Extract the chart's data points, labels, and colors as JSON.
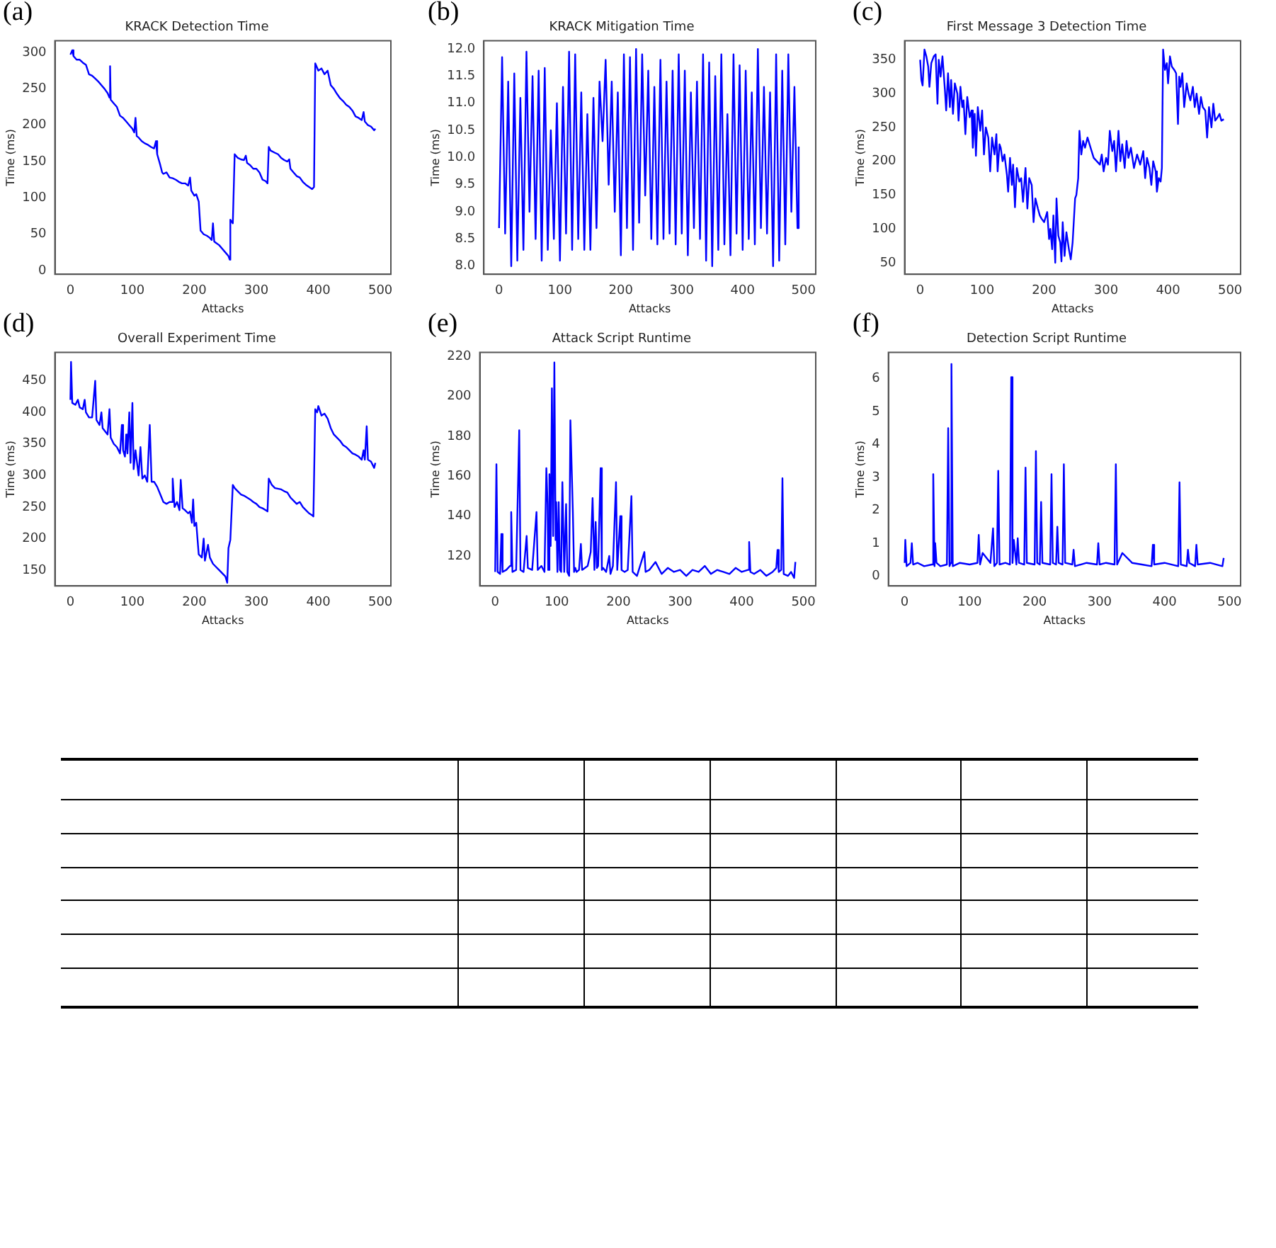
{
  "chart_data": [
    {
      "type": "line",
      "title": "KRACK Detection Time",
      "xlabel": "Attacks",
      "ylabel": "Time (ms)",
      "annotations": [
        "(a)"
      ],
      "xlim": [
        -25,
        517
      ],
      "xticks": [
        0,
        100,
        200,
        300,
        400,
        500
      ],
      "ylim": [
        -5,
        316
      ],
      "yticks": [
        0,
        50,
        100,
        150,
        200,
        250,
        300
      ],
      "grid": false,
      "legend": false,
      "marker": "none",
      "line_style": "solid",
      "series": [
        {
          "color": "#0000ff",
          "x": [
            0,
            3,
            5,
            10,
            15,
            20,
            25,
            30,
            35,
            40,
            45,
            50,
            55,
            60,
            63,
            64,
            65,
            70,
            75,
            80,
            85,
            90,
            95,
            100,
            103,
            105,
            107,
            110,
            115,
            120,
            125,
            130,
            135,
            138,
            140,
            145,
            148,
            150,
            155,
            160,
            165,
            170,
            175,
            180,
            185,
            190,
            193,
            195,
            200,
            203,
            207,
            210,
            215,
            220,
            225,
            228,
            230,
            232,
            235,
            240,
            245,
            250,
            255,
            257,
            258,
            262,
            265,
            270,
            275,
            280,
            283,
            285,
            290,
            295,
            300,
            305,
            310,
            315,
            318,
            320,
            323,
            330,
            335,
            340,
            345,
            350,
            353,
            355,
            360,
            365,
            370,
            375,
            380,
            385,
            390,
            393,
            395,
            400,
            405,
            410,
            415,
            420,
            425,
            430,
            435,
            440,
            445,
            450,
            455,
            460,
            465,
            470,
            473,
            475,
            480,
            485,
            490,
            492
          ],
          "values": [
            297,
            303,
            295,
            290,
            290,
            286,
            283,
            270,
            268,
            264,
            260,
            255,
            250,
            244,
            238,
            281,
            235,
            230,
            225,
            213,
            210,
            205,
            200,
            195,
            190,
            210,
            185,
            183,
            178,
            175,
            173,
            170,
            168,
            178,
            160,
            145,
            135,
            133,
            135,
            128,
            127,
            125,
            122,
            120,
            120,
            117,
            128,
            110,
            103,
            105,
            95,
            55,
            50,
            48,
            45,
            42,
            65,
            40,
            38,
            35,
            30,
            25,
            20,
            15,
            70,
            65,
            160,
            155,
            153,
            152,
            158,
            148,
            145,
            140,
            140,
            135,
            125,
            123,
            120,
            170,
            165,
            162,
            160,
            155,
            152,
            150,
            153,
            140,
            135,
            130,
            128,
            122,
            118,
            115,
            112,
            115,
            285,
            275,
            278,
            270,
            275,
            255,
            250,
            243,
            237,
            233,
            228,
            225,
            220,
            212,
            210,
            207,
            218,
            205,
            200,
            198,
            193,
            195
          ]
        }
      ]
    },
    {
      "type": "line",
      "title": "KRACK Mitigation Time",
      "xlabel": "Attacks",
      "ylabel": "Time (ms)",
      "annotations": [
        "(b)"
      ],
      "xlim": [
        -25,
        520
      ],
      "xticks": [
        0,
        100,
        200,
        300,
        400,
        500
      ],
      "ylim": [
        7.85,
        12.15
      ],
      "yticks": [
        {
          "value": 8,
          "label": "8.0"
        },
        8.5,
        {
          "value": 9,
          "label": "9.0"
        },
        9.5,
        {
          "value": 10,
          "label": "10.0"
        },
        10.5,
        {
          "value": 11,
          "label": "11.0"
        },
        11.5,
        {
          "value": 12,
          "label": "12.0"
        }
      ],
      "grid": false,
      "legend": false,
      "marker": "none",
      "line_style": "solid",
      "series": [
        {
          "color": "#0000ff",
          "x": [
            0,
            5,
            10,
            15,
            20,
            25,
            30,
            35,
            40,
            45,
            50,
            55,
            60,
            65,
            70,
            75,
            80,
            85,
            90,
            95,
            100,
            105,
            110,
            115,
            120,
            125,
            130,
            135,
            140,
            145,
            150,
            155,
            160,
            165,
            170,
            175,
            180,
            185,
            190,
            195,
            200,
            205,
            210,
            215,
            220,
            225,
            230,
            235,
            240,
            245,
            250,
            255,
            260,
            265,
            270,
            275,
            280,
            285,
            290,
            295,
            300,
            305,
            310,
            315,
            320,
            325,
            330,
            335,
            340,
            345,
            350,
            355,
            360,
            365,
            370,
            375,
            380,
            385,
            390,
            395,
            400,
            405,
            410,
            415,
            420,
            425,
            430,
            435,
            440,
            445,
            450,
            455,
            460,
            465,
            470,
            475,
            480,
            485,
            490,
            492
          ],
          "values": [
            8.7,
            11.85,
            8.6,
            11.4,
            8.0,
            11.55,
            8.1,
            11.1,
            8.3,
            11.95,
            9.0,
            11.5,
            8.5,
            11.6,
            8.1,
            11.65,
            8.3,
            10.5,
            8.5,
            11.0,
            8.1,
            11.3,
            8.6,
            11.95,
            8.3,
            11.9,
            8.5,
            11.2,
            8.3,
            10.8,
            8.3,
            11.1,
            8.7,
            11.4,
            10.3,
            11.8,
            9.5,
            11.4,
            9.0,
            11.2,
            8.2,
            11.9,
            8.7,
            11.85,
            8.3,
            12.0,
            8.8,
            11.9,
            9.3,
            11.6,
            8.5,
            11.3,
            8.4,
            11.8,
            8.5,
            11.4,
            8.6,
            11.6,
            8.4,
            11.9,
            8.6,
            11.6,
            8.2,
            11.2,
            8.7,
            11.4,
            8.5,
            11.9,
            8.1,
            11.75,
            8.0,
            11.5,
            8.3,
            11.9,
            8.4,
            10.8,
            8.2,
            11.9,
            8.6,
            11.7,
            8.3,
            11.6,
            8.5,
            11.2,
            8.4,
            12.0,
            8.7,
            11.3,
            8.6,
            11.2,
            8.0,
            11.9,
            8.1,
            11.6,
            8.4,
            11.9,
            9.0,
            11.3,
            8.7,
            10.2
          ]
        }
      ]
    },
    {
      "type": "line",
      "title": "First Message 3 Detection Time",
      "xlabel": "Attacks",
      "ylabel": "Time (ms)",
      "annotations": [
        "(c)"
      ],
      "xlim": [
        -25,
        517
      ],
      "xticks": [
        0,
        100,
        200,
        300,
        400,
        500
      ],
      "ylim": [
        33,
        378
      ],
      "yticks": [
        50,
        100,
        150,
        200,
        250,
        300,
        350
      ],
      "grid": false,
      "legend": false,
      "marker": "none",
      "line_style": "solid",
      "series": [
        {
          "color": "#0000ff",
          "x": [
            0,
            2,
            4,
            7,
            10,
            13,
            15,
            18,
            22,
            25,
            28,
            30,
            33,
            36,
            40,
            42,
            45,
            48,
            50,
            53,
            56,
            60,
            62,
            65,
            68,
            70,
            73,
            76,
            80,
            83,
            85,
            88,
            90,
            93,
            97,
            100,
            103,
            106,
            110,
            113,
            116,
            120,
            123,
            125,
            128,
            130,
            133,
            136,
            140,
            142,
            145,
            148,
            150,
            153,
            156,
            160,
            163,
            166,
            170,
            173,
            176,
            180,
            183,
            186,
            190,
            193,
            196,
            200,
            205,
            208,
            210,
            213,
            215,
            218,
            220,
            223,
            226,
            228,
            230,
            233,
            236,
            240,
            243,
            246,
            250,
            252,
            255,
            257,
            260,
            263,
            266,
            270,
            275,
            280,
            285,
            290,
            293,
            296,
            300,
            303,
            306,
            310,
            313,
            316,
            320,
            323,
            326,
            330,
            333,
            336,
            340,
            345,
            350,
            355,
            360,
            363,
            366,
            370,
            373,
            376,
            380,
            382,
            385,
            388,
            390,
            392,
            395,
            398,
            400,
            403,
            406,
            410,
            413,
            416,
            418,
            420,
            423,
            426,
            430,
            433,
            436,
            440,
            443,
            446,
            450,
            453,
            456,
            460,
            463,
            466,
            470,
            473,
            476,
            480,
            483,
            486,
            490
          ],
          "values": [
            350,
            320,
            312,
            365,
            355,
            340,
            310,
            345,
            355,
            358,
            285,
            350,
            325,
            355,
            305,
            275,
            330,
            280,
            320,
            270,
            315,
            300,
            260,
            310,
            280,
            290,
            240,
            295,
            265,
            275,
            220,
            270,
            208,
            280,
            245,
            275,
            210,
            250,
            235,
            185,
            235,
            210,
            240,
            185,
            225,
            220,
            200,
            210,
            180,
            155,
            205,
            165,
            195,
            132,
            190,
            170,
            175,
            140,
            190,
            130,
            175,
            165,
            110,
            145,
            130,
            120,
            115,
            110,
            125,
            85,
            100,
            70,
            120,
            50,
            145,
            90,
            80,
            52,
            110,
            60,
            95,
            70,
            55,
            80,
            145,
            150,
            175,
            245,
            210,
            230,
            220,
            235,
            220,
            205,
            200,
            195,
            210,
            185,
            205,
            195,
            245,
            215,
            230,
            185,
            245,
            200,
            225,
            190,
            230,
            205,
            220,
            190,
            210,
            195,
            215,
            175,
            205,
            190,
            165,
            200,
            185,
            155,
            175,
            170,
            190,
            365,
            335,
            345,
            315,
            355,
            340,
            335,
            330,
            255,
            325,
            310,
            330,
            280,
            315,
            300,
            290,
            310,
            280,
            300,
            270,
            295,
            280,
            275,
            235,
            280,
            250,
            285,
            260,
            265,
            270,
            260,
            262
          ]
        }
      ]
    },
    {
      "type": "line",
      "title": "Overall Experiment Time",
      "xlabel": "Attacks",
      "ylabel": "Time (ms)",
      "annotations": [
        "(d)"
      ],
      "xlim": [
        -25,
        517
      ],
      "xticks": [
        0,
        100,
        200,
        300,
        400,
        500
      ],
      "ylim": [
        125,
        495
      ],
      "yticks": [
        150,
        200,
        250,
        300,
        350,
        400,
        450
      ],
      "grid": false,
      "legend": false,
      "marker": "none",
      "line_style": "solid",
      "series": [
        {
          "color": "#0000ff",
          "x": [
            0,
            1,
            3,
            8,
            12,
            15,
            20,
            23,
            25,
            30,
            35,
            40,
            42,
            47,
            50,
            52,
            60,
            63,
            65,
            70,
            75,
            80,
            83,
            85,
            88,
            90,
            92,
            95,
            97,
            100,
            102,
            105,
            110,
            113,
            116,
            120,
            124,
            128,
            131,
            135,
            140,
            145,
            150,
            155,
            160,
            163,
            165,
            168,
            172,
            176,
            178,
            181,
            185,
            190,
            193,
            196,
            198,
            200,
            203,
            207,
            212,
            215,
            217,
            222,
            225,
            230,
            235,
            240,
            245,
            250,
            253,
            255,
            258,
            262,
            265,
            270,
            275,
            280,
            285,
            290,
            295,
            300,
            305,
            310,
            315,
            318,
            320,
            325,
            330,
            340,
            345,
            350,
            355,
            360,
            365,
            370,
            375,
            380,
            385,
            390,
            392,
            395,
            398,
            400,
            405,
            410,
            415,
            420,
            425,
            430,
            435,
            440,
            445,
            450,
            455,
            460,
            465,
            470,
            473,
            475,
            478,
            480,
            485,
            490,
            492
          ],
          "values": [
            420,
            480,
            415,
            412,
            420,
            408,
            405,
            420,
            400,
            392,
            392,
            450,
            388,
            380,
            400,
            375,
            365,
            405,
            360,
            350,
            345,
            335,
            380,
            340,
            330,
            365,
            335,
            400,
            320,
            415,
            310,
            340,
            300,
            345,
            295,
            300,
            290,
            380,
            290,
            290,
            282,
            270,
            258,
            255,
            258,
            258,
            295,
            250,
            258,
            245,
            293,
            248,
            245,
            240,
            243,
            225,
            262,
            220,
            225,
            175,
            170,
            200,
            165,
            190,
            170,
            160,
            155,
            150,
            145,
            140,
            130,
            185,
            198,
            285,
            280,
            275,
            270,
            268,
            265,
            262,
            258,
            255,
            250,
            248,
            245,
            243,
            295,
            285,
            280,
            278,
            275,
            273,
            265,
            260,
            255,
            258,
            250,
            245,
            240,
            237,
            235,
            405,
            400,
            410,
            395,
            398,
            390,
            375,
            365,
            360,
            355,
            348,
            345,
            340,
            335,
            333,
            330,
            325,
            340,
            325,
            378,
            325,
            322,
            312,
            320
          ]
        }
      ]
    },
    {
      "type": "line",
      "title": "Attack Script Runtime",
      "xlabel": "Attacks",
      "ylabel": "Time (ms)",
      "annotations": [
        "(e)"
      ],
      "xlim": [
        -25,
        520
      ],
      "xticks": [
        0,
        100,
        200,
        300,
        400,
        500
      ],
      "ylim": [
        105,
        222
      ],
      "yticks": [
        120,
        140,
        160,
        180,
        200,
        220
      ],
      "grid": false,
      "legend": false,
      "marker": "none",
      "line_style": "solid",
      "series": [
        {
          "color": "#0000ff",
          "x": [
            0,
            2,
            4,
            8,
            10,
            12,
            18,
            24,
            26,
            28,
            34,
            39,
            41,
            46,
            51,
            53,
            60,
            67,
            69,
            75,
            80,
            83,
            85,
            86,
            88,
            90,
            92,
            94,
            96,
            98,
            99,
            101,
            103,
            105,
            107,
            109,
            112,
            115,
            117,
            120,
            122,
            126,
            128,
            130,
            132,
            136,
            139,
            141,
            150,
            155,
            158,
            161,
            163,
            165,
            167,
            171,
            173,
            175,
            180,
            185,
            187,
            191,
            196,
            198,
            203,
            205,
            210,
            215,
            221,
            223,
            230,
            242,
            244,
            250,
            260,
            270,
            280,
            290,
            300,
            310,
            320,
            330,
            340,
            350,
            360,
            370,
            380,
            390,
            400,
            410,
            412,
            414,
            420,
            430,
            440,
            450,
            456,
            458,
            460,
            464,
            466,
            468,
            475,
            480,
            485,
            487
          ],
          "values": [
            112,
            166,
            112,
            111,
            131,
            112,
            113,
            115,
            142,
            112,
            113,
            183,
            113,
            112,
            130,
            114,
            113,
            142,
            113,
            115,
            112,
            164,
            146,
            113,
            161,
            125,
            204,
            130,
            217,
            128,
            147,
            112,
            147,
            113,
            112,
            157,
            112,
            146,
            112,
            110,
            188,
            142,
            112,
            114,
            112,
            113,
            126,
            113,
            115,
            122,
            149,
            113,
            137,
            114,
            115,
            164,
            113,
            114,
            112,
            120,
            111,
            115,
            157,
            113,
            140,
            113,
            112,
            113,
            150,
            112,
            110,
            122,
            112,
            113,
            117,
            111,
            114,
            112,
            113,
            110,
            113,
            112,
            115,
            111,
            113,
            112,
            111,
            114,
            112,
            113,
            127,
            112,
            111,
            113,
            110,
            112,
            114,
            123,
            112,
            113,
            159,
            111,
            110,
            112,
            109,
            117
          ]
        }
      ]
    },
    {
      "type": "line",
      "title": "Detection Script Runtime",
      "xlabel": "Attacks",
      "ylabel": "Time (ms)",
      "annotations": [
        "(f)"
      ],
      "xlim": [
        -25,
        517
      ],
      "xticks": [
        0,
        100,
        200,
        300,
        400,
        500
      ],
      "ylim": [
        -0.3,
        6.8
      ],
      "yticks": [
        0,
        1,
        2,
        3,
        4,
        5,
        6
      ],
      "grid": false,
      "legend": false,
      "marker": "none",
      "line_style": "solid",
      "series": [
        {
          "color": "#0000ff",
          "x": [
            0,
            1,
            3,
            9,
            11,
            13,
            20,
            30,
            42,
            44,
            46,
            47,
            49,
            55,
            65,
            67,
            69,
            71,
            72,
            74,
            85,
            100,
            112,
            114,
            116,
            120,
            132,
            136,
            138,
            142,
            144,
            146,
            155,
            162,
            164,
            166,
            168,
            172,
            174,
            176,
            184,
            186,
            188,
            200,
            202,
            204,
            208,
            210,
            212,
            224,
            226,
            228,
            233,
            235,
            237,
            243,
            245,
            247,
            258,
            260,
            262,
            280,
            296,
            298,
            300,
            310,
            323,
            325,
            327,
            335,
            350,
            365,
            380,
            382,
            384,
            400,
            421,
            423,
            425,
            434,
            436,
            438,
            447,
            449,
            451,
            470,
            489,
            491
          ],
          "values": [
            0.4,
            1.1,
            0.3,
            0.4,
            1.0,
            0.35,
            0.4,
            0.3,
            0.35,
            3.1,
            0.3,
            1.0,
            0.4,
            0.3,
            0.35,
            4.5,
            0.3,
            0.4,
            6.45,
            0.3,
            0.4,
            0.35,
            0.4,
            1.25,
            0.35,
            0.7,
            0.4,
            1.45,
            0.3,
            0.4,
            3.2,
            0.35,
            0.4,
            0.35,
            6.05,
            0.4,
            1.1,
            0.35,
            1.15,
            0.4,
            0.35,
            3.3,
            0.4,
            0.35,
            3.8,
            0.4,
            0.35,
            2.25,
            0.4,
            0.35,
            3.1,
            0.4,
            0.35,
            1.5,
            0.4,
            0.35,
            3.4,
            0.4,
            0.35,
            0.8,
            0.3,
            0.4,
            0.35,
            1.0,
            0.35,
            0.4,
            0.35,
            3.4,
            0.35,
            0.7,
            0.4,
            0.35,
            0.3,
            0.95,
            0.35,
            0.4,
            0.3,
            2.85,
            0.35,
            0.3,
            0.8,
            0.4,
            0.3,
            0.95,
            0.35,
            0.4,
            0.3,
            0.55
          ]
        }
      ]
    }
  ]
}
